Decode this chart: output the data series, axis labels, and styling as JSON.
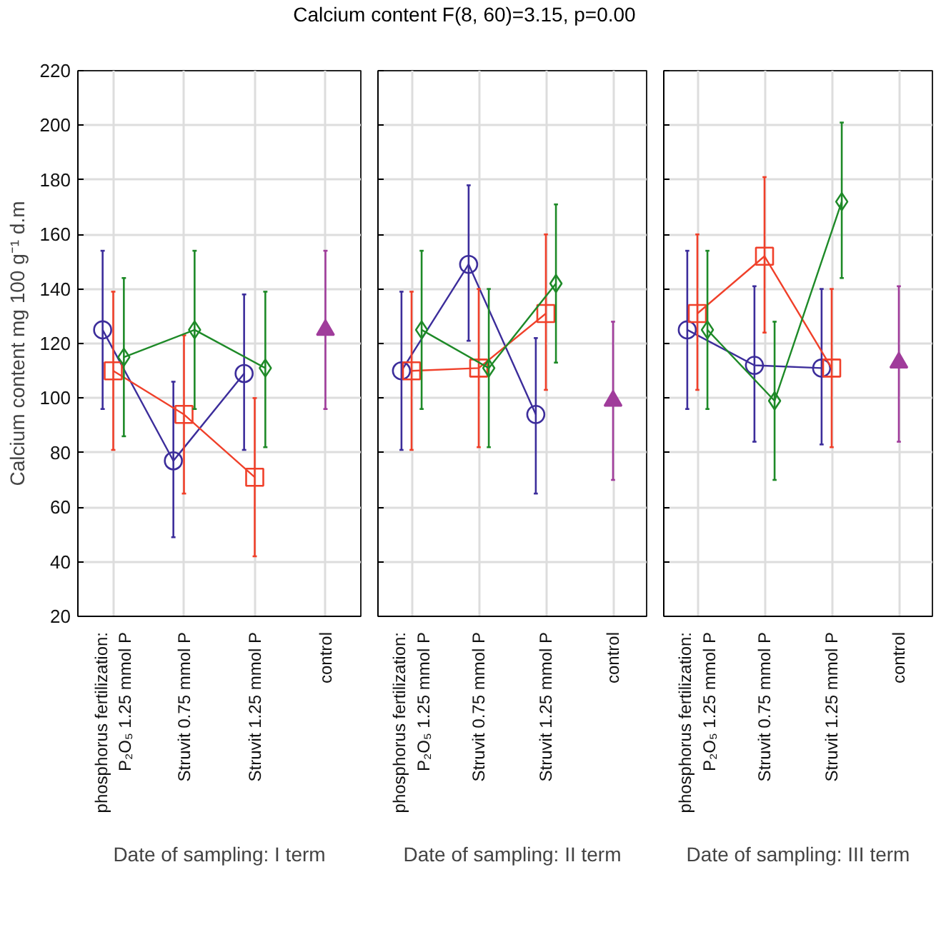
{
  "chart_data": [
    {
      "type": "line",
      "title": "Calcium content  F(8, 60)=3.15, p=0.00",
      "ylabel": "Calcium content mg 100 g⁻¹ d.m",
      "xlabel": "Date of sampling: I term",
      "categories": [
        "phosphorus fertilization:\nP₂O₅ 1.25 mmol P",
        "Struvit 0.75 mmol P",
        "Struvit 1.25 mmol P",
        "control"
      ],
      "ylim": [
        20,
        220
      ],
      "yticks": [
        20,
        40,
        60,
        80,
        100,
        120,
        140,
        160,
        180,
        200,
        220
      ],
      "grid": true,
      "series": [
        {
          "color": "#3c2d9b",
          "marker": "circle",
          "values": [
            125,
            77,
            109,
            null
          ],
          "errors": [
            [
              96,
              154
            ],
            [
              49,
              106
            ],
            [
              81,
              138
            ],
            null
          ]
        },
        {
          "color": "#f0402a",
          "marker": "square",
          "values": [
            110,
            94,
            71,
            null
          ],
          "errors": [
            [
              81,
              139
            ],
            [
              65,
              123
            ],
            [
              42,
              100
            ],
            null
          ]
        },
        {
          "color": "#1e8a28",
          "marker": "diamond",
          "values": [
            115,
            125,
            111,
            null
          ],
          "errors": [
            [
              86,
              144
            ],
            [
              96,
              154
            ],
            [
              82,
              139
            ],
            null
          ]
        },
        {
          "color": "#a03c9b",
          "marker": "triangle",
          "values": [
            null,
            null,
            null,
            125
          ],
          "errors": [
            null,
            null,
            null,
            [
              96,
              154
            ]
          ]
        }
      ]
    },
    {
      "type": "line",
      "xlabel": "Date of sampling: II term",
      "tick_labels": "x",
      "categories": [
        "phosphorus fertilization:\nP₂O₅ 1.25 mmol P",
        "Struvit 0.75 mmol P",
        "Struvit 1.25 mmol P",
        "control"
      ],
      "ylim": [
        20,
        220
      ],
      "yticks": [
        20,
        40,
        60,
        80,
        100,
        120,
        140,
        160,
        180,
        200,
        220
      ],
      "grid": true,
      "series": [
        {
          "color": "#3c2d9b",
          "marker": "circle",
          "values": [
            110,
            149,
            94,
            null
          ],
          "errors": [
            [
              81,
              139
            ],
            [
              121,
              178
            ],
            [
              65,
              122
            ],
            null
          ]
        },
        {
          "color": "#f0402a",
          "marker": "square",
          "values": [
            110,
            111,
            131,
            null
          ],
          "errors": [
            [
              81,
              139
            ],
            [
              82,
              140
            ],
            [
              103,
              160
            ],
            null
          ]
        },
        {
          "color": "#1e8a28",
          "marker": "diamond",
          "values": [
            125,
            111,
            142,
            null
          ],
          "errors": [
            [
              96,
              154
            ],
            [
              82,
              140
            ],
            [
              113,
              171
            ],
            null
          ]
        },
        {
          "color": "#a03c9b",
          "marker": "triangle",
          "values": [
            null,
            null,
            null,
            99
          ],
          "errors": [
            null,
            null,
            null,
            [
              70,
              128
            ]
          ]
        }
      ]
    },
    {
      "type": "line",
      "xlabel": "Date of sampling: III term",
      "tick_labels": "x",
      "categories": [
        "phosphorus fertilization:\nP₂O₅ 1.25 mmol P",
        "Struvit 0.75 mmol P",
        "Struvit 1.25 mmol P",
        "control"
      ],
      "ylim": [
        20,
        220
      ],
      "yticks": [
        20,
        40,
        60,
        80,
        100,
        120,
        140,
        160,
        180,
        200,
        220
      ],
      "grid": true,
      "series": [
        {
          "color": "#3c2d9b",
          "marker": "circle",
          "values": [
            125,
            112,
            111,
            null
          ],
          "errors": [
            [
              96,
              154
            ],
            [
              84,
              141
            ],
            [
              83,
              140
            ],
            null
          ]
        },
        {
          "color": "#f0402a",
          "marker": "square",
          "values": [
            131,
            152,
            111,
            null
          ],
          "errors": [
            [
              103,
              160
            ],
            [
              124,
              181
            ],
            [
              82,
              140
            ],
            null
          ]
        },
        {
          "color": "#1e8a28",
          "marker": "diamond",
          "values": [
            125,
            99,
            172,
            null
          ],
          "errors": [
            [
              96,
              154
            ],
            [
              70,
              128
            ],
            [
              144,
              201
            ],
            null
          ]
        },
        {
          "color": "#a03c9b",
          "marker": "triangle",
          "values": [
            null,
            null,
            null,
            113
          ],
          "errors": [
            null,
            null,
            null,
            [
              84,
              141
            ]
          ]
        }
      ]
    }
  ]
}
